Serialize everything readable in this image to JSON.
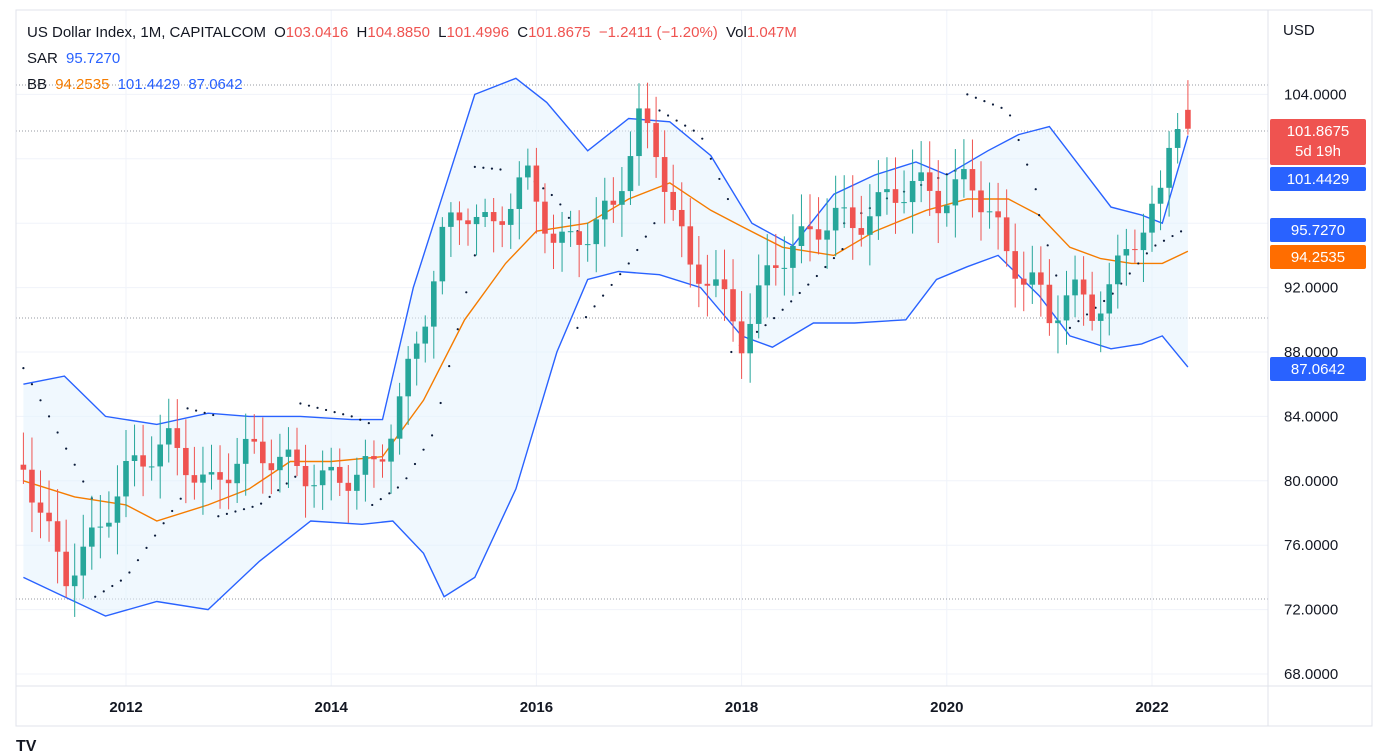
{
  "header": {
    "symbol": "US Dollar Index, 1M, CAPITALCOM",
    "o_label": "O",
    "o_value": "103.0416",
    "h_label": "H",
    "h_value": "104.8850",
    "l_label": "L",
    "l_value": "101.4996",
    "c_label": "C",
    "c_value": "101.8675",
    "change": "−1.2411 (−1.20%)",
    "vol_label": "Vol",
    "vol_value": "1.047M",
    "sar_label": "SAR",
    "sar_value": "95.7270",
    "bb_label": "BB",
    "bb_basis": "94.2535",
    "bb_upper": "101.4429",
    "bb_lower": "87.0642"
  },
  "axis": {
    "currency": "USD",
    "y_ticks": [
      "68.0000",
      "72.0000",
      "76.0000",
      "80.0000",
      "84.0000",
      "88.0000",
      "92.0000",
      "104.0000"
    ],
    "x_ticks": [
      "2012",
      "2014",
      "2016",
      "2018",
      "2020",
      "2022"
    ]
  },
  "price_labels": {
    "last": "101.8675",
    "countdown": "5d 19h",
    "bb_upper": "101.4429",
    "sar": "95.7270",
    "bb_basis": "94.2535",
    "bb_lower": "87.0642"
  },
  "colors": {
    "up": "#26a69a",
    "down": "#ef5350",
    "band": "#2962ff",
    "basis": "#f57c00",
    "band_fill": "#e3f2fd",
    "sar": "#0b1b3a",
    "grid": "#f0f3fa"
  },
  "chart_data": {
    "type": "candlestick",
    "title": "US Dollar Index, 1M, CAPITALCOM",
    "ylim": [
      68,
      106
    ],
    "xlim": [
      2011.0,
      2022.45
    ],
    "x_ticks": [
      2012,
      2014,
      2016,
      2018,
      2020,
      2022
    ],
    "y_ticks": [
      68,
      72,
      76,
      80,
      84,
      88,
      92,
      104
    ],
    "grid": true,
    "last_ohlc": {
      "open": 103.0416,
      "high": 104.885,
      "low": 101.4996,
      "close": 101.8675,
      "volume": "1.047M"
    },
    "close_anchors": [
      [
        2011.0,
        81.0
      ],
      [
        2011.4,
        74.0
      ],
      [
        2011.7,
        76.5
      ],
      [
        2012.0,
        80.5
      ],
      [
        2012.4,
        82.5
      ],
      [
        2012.8,
        79.5
      ],
      [
        2013.2,
        82.0
      ],
      [
        2013.6,
        81.0
      ],
      [
        2013.9,
        80.0
      ],
      [
        2014.2,
        80.3
      ],
      [
        2014.45,
        81.0
      ],
      [
        2014.65,
        84.5
      ],
      [
        2014.9,
        90.0
      ],
      [
        2015.1,
        95.5
      ],
      [
        2015.3,
        97.0
      ],
      [
        2015.55,
        95.5
      ],
      [
        2015.9,
        99.0
      ],
      [
        2016.2,
        94.5
      ],
      [
        2016.5,
        95.5
      ],
      [
        2016.75,
        97.0
      ],
      [
        2017.0,
        102.5
      ],
      [
        2017.2,
        100.0
      ],
      [
        2017.5,
        93.0
      ],
      [
        2017.7,
        92.8
      ],
      [
        2018.0,
        88.8
      ],
      [
        2018.3,
        93.5
      ],
      [
        2018.6,
        95.0
      ],
      [
        2018.9,
        96.5
      ],
      [
        2019.1,
        95.8
      ],
      [
        2019.4,
        97.5
      ],
      [
        2019.7,
        98.5
      ],
      [
        2019.95,
        97.3
      ],
      [
        2020.2,
        98.8
      ],
      [
        2020.45,
        96.5
      ],
      [
        2020.6,
        93.5
      ],
      [
        2020.85,
        92.5
      ],
      [
        2021.0,
        89.8
      ],
      [
        2021.2,
        92.3
      ],
      [
        2021.4,
        90.2
      ],
      [
        2021.6,
        92.3
      ],
      [
        2021.9,
        95.9
      ],
      [
        2022.1,
        97.5
      ],
      [
        2022.2,
        102.5
      ],
      [
        2022.3,
        103.0
      ],
      [
        2022.35,
        101.8675
      ]
    ],
    "bollinger": {
      "upper": [
        [
          2011.0,
          86.0
        ],
        [
          2011.4,
          86.5
        ],
        [
          2011.8,
          84.0
        ],
        [
          2012.3,
          83.5
        ],
        [
          2012.8,
          84.2
        ],
        [
          2013.2,
          84.0
        ],
        [
          2013.7,
          84.0
        ],
        [
          2014.2,
          83.8
        ],
        [
          2014.5,
          83.8
        ],
        [
          2014.8,
          92.0
        ],
        [
          2015.0,
          96.0
        ],
        [
          2015.4,
          104.0
        ],
        [
          2015.8,
          105.0
        ],
        [
          2016.1,
          103.5
        ],
        [
          2016.5,
          100.5
        ],
        [
          2016.9,
          102.5
        ],
        [
          2017.3,
          102.3
        ],
        [
          2017.7,
          100.2
        ],
        [
          2018.1,
          96.0
        ],
        [
          2018.5,
          94.6
        ],
        [
          2018.9,
          97.8
        ],
        [
          2019.3,
          99.0
        ],
        [
          2019.7,
          99.8
        ],
        [
          2020.0,
          99.0
        ],
        [
          2020.4,
          100.5
        ],
        [
          2020.7,
          101.5
        ],
        [
          2021.0,
          102.0
        ],
        [
          2021.3,
          99.5
        ],
        [
          2021.6,
          97.0
        ],
        [
          2021.9,
          96.5
        ],
        [
          2022.1,
          96.0
        ],
        [
          2022.35,
          101.4429
        ]
      ],
      "basis": [
        [
          2011.0,
          80.0
        ],
        [
          2011.5,
          79.0
        ],
        [
          2012.0,
          78.5
        ],
        [
          2012.3,
          77.5
        ],
        [
          2012.8,
          78.5
        ],
        [
          2013.2,
          79.5
        ],
        [
          2013.6,
          81.2
        ],
        [
          2014.0,
          81.2
        ],
        [
          2014.5,
          81.5
        ],
        [
          2014.9,
          85.0
        ],
        [
          2015.3,
          90.0
        ],
        [
          2015.7,
          93.5
        ],
        [
          2016.0,
          95.5
        ],
        [
          2016.5,
          96.0
        ],
        [
          2016.9,
          97.5
        ],
        [
          2017.3,
          98.5
        ],
        [
          2017.7,
          96.8
        ],
        [
          2018.0,
          95.8
        ],
        [
          2018.4,
          94.5
        ],
        [
          2018.9,
          94.0
        ],
        [
          2019.3,
          95.5
        ],
        [
          2019.8,
          96.8
        ],
        [
          2020.2,
          97.5
        ],
        [
          2020.6,
          97.5
        ],
        [
          2020.9,
          96.5
        ],
        [
          2021.2,
          94.5
        ],
        [
          2021.5,
          93.8
        ],
        [
          2021.8,
          93.5
        ],
        [
          2022.1,
          93.5
        ],
        [
          2022.35,
          94.2535
        ]
      ],
      "lower": [
        [
          2011.0,
          74.0
        ],
        [
          2011.4,
          72.8
        ],
        [
          2011.8,
          71.6
        ],
        [
          2012.3,
          72.5
        ],
        [
          2012.8,
          72.0
        ],
        [
          2013.3,
          75.0
        ],
        [
          2013.8,
          77.5
        ],
        [
          2014.3,
          77.3
        ],
        [
          2014.6,
          77.5
        ],
        [
          2014.9,
          75.5
        ],
        [
          2015.1,
          72.8
        ],
        [
          2015.4,
          74.0
        ],
        [
          2015.8,
          79.5
        ],
        [
          2016.2,
          88.0
        ],
        [
          2016.5,
          92.5
        ],
        [
          2016.8,
          93.0
        ],
        [
          2017.2,
          92.8
        ],
        [
          2017.6,
          92.0
        ],
        [
          2018.0,
          89.0
        ],
        [
          2018.3,
          88.3
        ],
        [
          2018.7,
          89.8
        ],
        [
          2019.1,
          89.8
        ],
        [
          2019.6,
          90.0
        ],
        [
          2019.9,
          92.5
        ],
        [
          2020.2,
          93.3
        ],
        [
          2020.5,
          94.0
        ],
        [
          2020.9,
          91.5
        ],
        [
          2021.2,
          89.0
        ],
        [
          2021.6,
          88.2
        ],
        [
          2021.9,
          88.5
        ],
        [
          2022.1,
          89.0
        ],
        [
          2022.35,
          87.0642
        ]
      ]
    },
    "sar": {
      "value": 95.727,
      "segments": [
        [
          [
            2011.0,
            87.0
          ],
          [
            2011.5,
            81.0
          ],
          [
            2011.7,
            78.5
          ]
        ],
        [
          [
            2011.7,
            72.8
          ],
          [
            2012.0,
            74.0
          ],
          [
            2012.6,
            79.5
          ]
        ],
        [
          [
            2012.6,
            84.5
          ],
          [
            2012.9,
            84.0
          ]
        ],
        [
          [
            2012.9,
            77.8
          ],
          [
            2013.3,
            78.5
          ],
          [
            2013.7,
            80.5
          ]
        ],
        [
          [
            2013.7,
            84.8
          ],
          [
            2014.2,
            84.0
          ],
          [
            2014.4,
            83.5
          ]
        ],
        [
          [
            2014.4,
            78.5
          ],
          [
            2014.7,
            79.8
          ],
          [
            2015.0,
            83.0
          ],
          [
            2015.4,
            94.0
          ]
        ],
        [
          [
            2015.4,
            99.5
          ],
          [
            2015.7,
            99.3
          ]
        ],
        [
          [
            2015.9,
            99.0
          ],
          [
            2016.2,
            97.5
          ],
          [
            2016.4,
            95.5
          ]
        ],
        [
          [
            2016.4,
            89.5
          ],
          [
            2016.9,
            93.5
          ],
          [
            2017.2,
            96.5
          ]
        ],
        [
          [
            2017.2,
            103.0
          ],
          [
            2017.6,
            101.5
          ],
          [
            2017.9,
            97.0
          ]
        ],
        [
          [
            2017.9,
            88.0
          ],
          [
            2018.3,
            90.0
          ],
          [
            2018.7,
            92.5
          ],
          [
            2019.0,
            94.5
          ]
        ],
        [
          [
            2019.0,
            96.0
          ],
          [
            2019.4,
            97.5
          ],
          [
            2019.8,
            98.5
          ],
          [
            2020.1,
            99.3
          ]
        ],
        [
          [
            2020.2,
            104.0
          ],
          [
            2020.6,
            103.0
          ],
          [
            2020.9,
            97.5
          ]
        ],
        [
          [
            2020.9,
            96.5
          ],
          [
            2021.1,
            92.0
          ]
        ],
        [
          [
            2021.2,
            89.5
          ],
          [
            2021.6,
            91.5
          ],
          [
            2022.0,
            94.5
          ],
          [
            2022.35,
            95.727
          ]
        ]
      ]
    }
  }
}
